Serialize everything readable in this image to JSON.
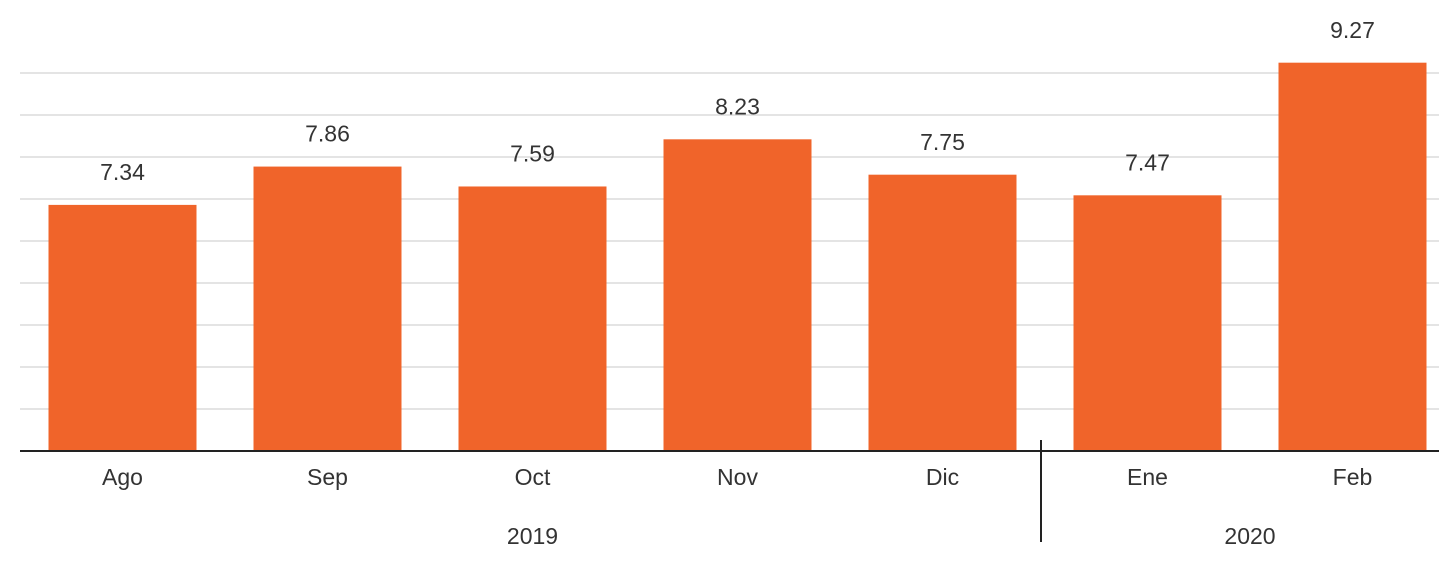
{
  "chart_data": {
    "type": "bar",
    "categories": [
      "Ago",
      "Sep",
      "Oct",
      "Nov",
      "Dic",
      "Ene",
      "Feb"
    ],
    "values": [
      7.34,
      7.86,
      7.59,
      8.23,
      7.75,
      7.47,
      9.27
    ],
    "x_groups": [
      {
        "label": "2019",
        "count": 5
      },
      {
        "label": "2020",
        "count": 2
      }
    ],
    "color": "#f0642a",
    "ylim": [
      4,
      9.7
    ],
    "yticks": [
      4,
      4.57,
      5.14,
      5.71,
      6.28,
      6.85,
      7.42,
      7.99,
      8.56,
      9.13
    ],
    "grid": true
  }
}
